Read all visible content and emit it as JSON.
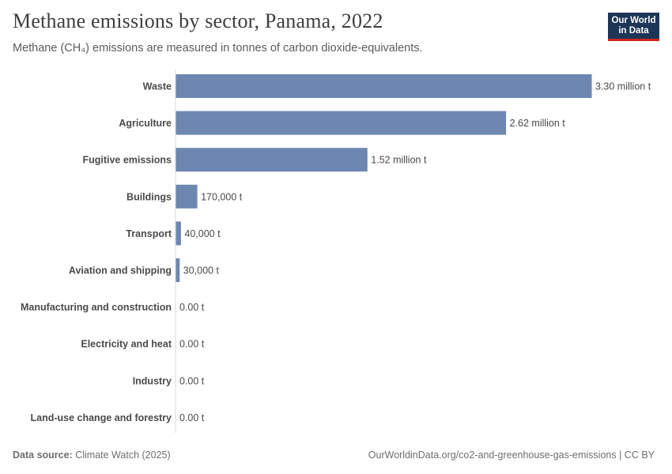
{
  "title": "Methane emissions by sector, Panama, 2022",
  "subtitle": "Methane (CH₄) emissions are measured in tonnes of carbon dioxide-equivalents.",
  "logo": {
    "line1": "Our World",
    "line2": "in Data"
  },
  "footer": {
    "source_label": "Data source:",
    "source_value": "Climate Watch (2025)",
    "link": "OurWorldinData.org/co2-and-greenhouse-gas-emissions | CC BY"
  },
  "colors": {
    "bar": "#6d87b0",
    "label": "#4a4a4a",
    "value": "#4a4a4a",
    "axis": "#d9d9d9"
  },
  "chart_data": {
    "type": "bar",
    "orientation": "horizontal",
    "title": "Methane emissions by sector, Panama, 2022",
    "xlabel": "",
    "ylabel": "",
    "xlim": [
      0,
      3300000
    ],
    "categories": [
      "Waste",
      "Agriculture",
      "Fugitive emissions",
      "Buildings",
      "Transport",
      "Aviation and shipping",
      "Manufacturing and construction",
      "Electricity and heat",
      "Industry",
      "Land-use change and forestry"
    ],
    "values": [
      3300000,
      2620000,
      1520000,
      170000,
      40000,
      30000,
      0,
      0,
      0,
      0
    ],
    "value_labels": [
      "3.30 million t",
      "2.62 million t",
      "1.52 million t",
      "170,000 t",
      "40,000 t",
      "30,000 t",
      "0.00 t",
      "0.00 t",
      "0.00 t",
      "0.00 t"
    ]
  }
}
